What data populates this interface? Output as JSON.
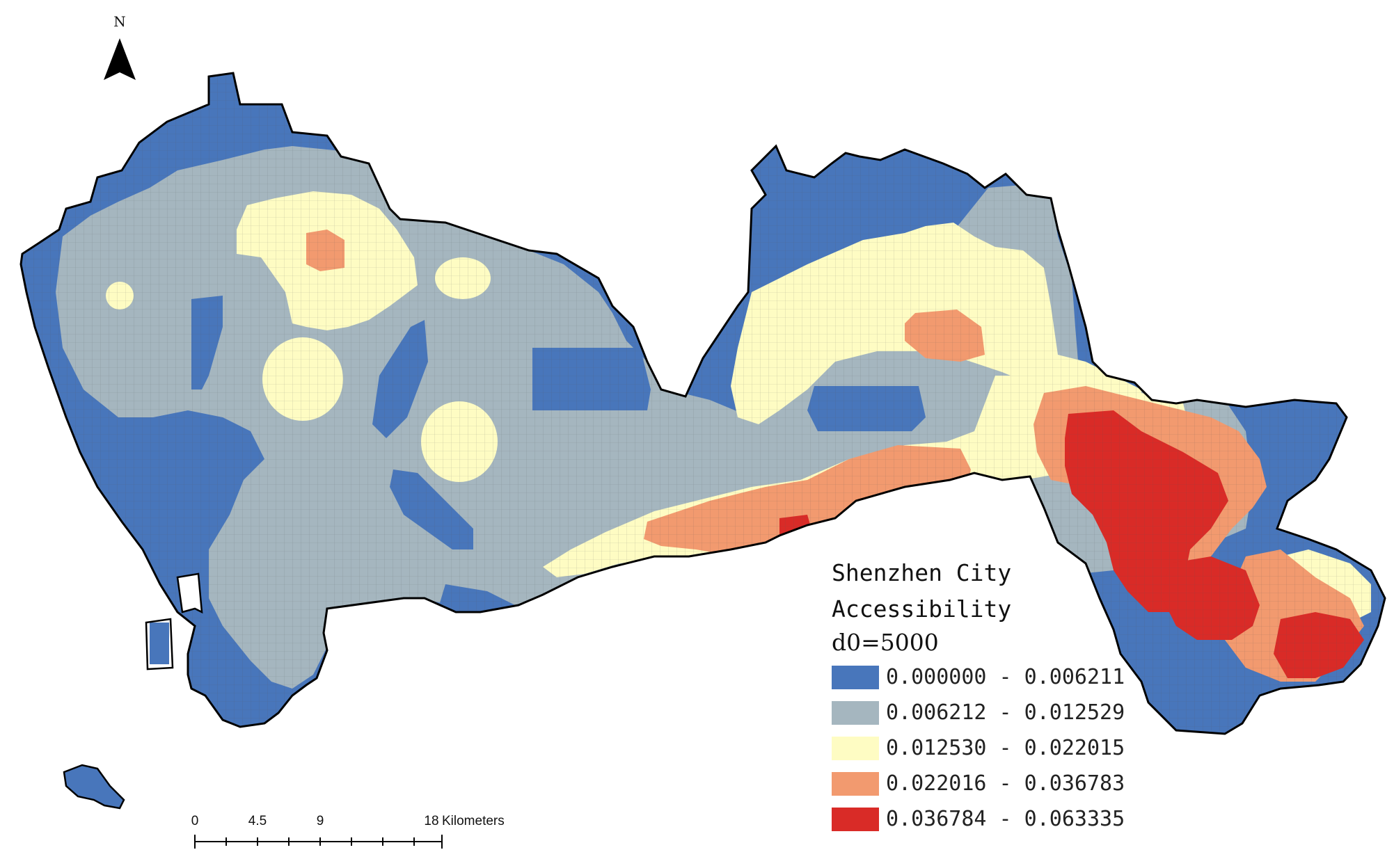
{
  "map": {
    "north_label": "N",
    "legend": {
      "title_line1": "Shenzhen City",
      "title_line2": "Accessibility",
      "param": "d0=5000",
      "classes": [
        {
          "range": "0.000000 - 0.006211",
          "color": "#4876bb"
        },
        {
          "range": "0.006212 - 0.012529",
          "color": "#a5b6bf"
        },
        {
          "range": "0.012530 - 0.022015",
          "color": "#fefcc3"
        },
        {
          "range": "0.022016 - 0.036783",
          "color": "#f29a6f"
        },
        {
          "range": "0.036784 - 0.063335",
          "color": "#d92b27"
        }
      ]
    },
    "scale_bar": {
      "ticks": [
        "0",
        "4.5",
        "9",
        "18"
      ],
      "unit": "Kilometers"
    },
    "icons": [
      "north-arrow-icon"
    ]
  }
}
